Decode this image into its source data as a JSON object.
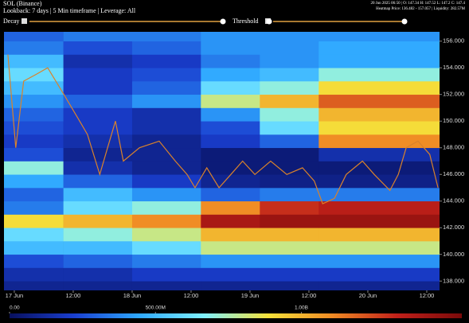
{
  "chart_data": {
    "type": "heatmap",
    "title": "SOL (Binance)",
    "subtitle": "Lookback: 7 days | 5 Min timeframe | Leverage: All",
    "info": [
      "20 Jun 2025 06:50 | O: 147.34 H: 147.52 L: 147.2 C: 147.4",
      "Heatmap Price: 136.482 - 157.057 | Liquidity: 282.57M"
    ],
    "controls": [
      "Decay",
      "Threshold"
    ],
    "xlim": [
      -2.1,
      86.6
    ],
    "ylim": [
      137.3,
      156.7
    ],
    "xticks": [
      {
        "value": 0,
        "label": "17 Jun"
      },
      {
        "value": 12,
        "label": "12:00"
      },
      {
        "value": 24,
        "label": "18 Jun"
      },
      {
        "value": 36,
        "label": "12:00"
      },
      {
        "value": 48,
        "label": "19 Jun"
      },
      {
        "value": 60,
        "label": "12:00"
      },
      {
        "value": 72,
        "label": "20 Jun"
      },
      {
        "value": 84,
        "label": "12:00"
      }
    ],
    "yticks": [
      {
        "value": 138,
        "label": "138.000"
      },
      {
        "value": 140,
        "label": "140.000"
      },
      {
        "value": 142,
        "label": "142.000"
      },
      {
        "value": 144,
        "label": "144.000"
      },
      {
        "value": 146,
        "label": "146.000"
      },
      {
        "value": 148,
        "label": "148.000"
      },
      {
        "value": 150,
        "label": "150.000"
      },
      {
        "value": 152,
        "label": "152.000"
      },
      {
        "value": 154,
        "label": "154.000"
      },
      {
        "value": 156,
        "label": "156.000"
      }
    ],
    "heatmap": {
      "x_edges": [
        -2.1,
        10,
        24,
        38,
        50,
        62,
        86.6
      ],
      "y_edges": [
        137,
        138,
        139,
        140,
        141,
        142,
        143,
        144,
        145,
        146,
        147,
        148,
        149,
        150,
        151,
        152,
        153,
        154,
        155,
        156,
        157
      ],
      "values": [
        [
          100,
          100,
          100,
          100,
          100,
          100
        ],
        [
          150,
          150,
          200,
          200,
          200,
          200
        ],
        [
          250,
          300,
          350,
          400,
          400,
          400
        ],
        [
          500,
          500,
          600,
          800,
          800,
          800
        ],
        [
          600,
          700,
          800,
          1000,
          1000,
          1000
        ],
        [
          900,
          1000,
          1100,
          1400,
          1450,
          1450
        ],
        [
          350,
          600,
          700,
          1100,
          1300,
          1350
        ],
        [
          300,
          500,
          400,
          300,
          350,
          350
        ],
        [
          450,
          300,
          200,
          100,
          80,
          80
        ],
        [
          700,
          150,
          100,
          50,
          50,
          50
        ],
        [
          250,
          100,
          100,
          50,
          50,
          150
        ],
        [
          200,
          150,
          100,
          200,
          300,
          1100
        ],
        [
          250,
          200,
          150,
          250,
          600,
          900
        ],
        [
          300,
          200,
          150,
          400,
          700,
          1000
        ],
        [
          400,
          300,
          400,
          800,
          1000,
          1200
        ],
        [
          500,
          200,
          300,
          600,
          700,
          900
        ],
        [
          600,
          200,
          250,
          450,
          500,
          700
        ],
        [
          500,
          150,
          200,
          350,
          400,
          450
        ],
        [
          350,
          250,
          300,
          400,
          400,
          450
        ],
        [
          300,
          350,
          350,
          400,
          400,
          400
        ]
      ]
    },
    "colorscale": [
      "#08105e",
      "#1a3fd0",
      "#2ea8ff",
      "#7ef0ff",
      "#f5e23a",
      "#f08a24",
      "#c0201a",
      "#7a0a0a"
    ],
    "clim": [
      0,
      1550
    ],
    "colorbar_ticks": [
      {
        "value": 0,
        "label": "0.00"
      },
      {
        "value": 500,
        "label": "500.00M"
      },
      {
        "value": 1000,
        "label": "1.00B"
      }
    ],
    "price": {
      "color": "#d9822b",
      "x": [
        -1.3,
        0.3,
        1.9,
        4.4,
        6.8,
        10.1,
        13.3,
        14.9,
        17.4,
        19.0,
        20.6,
        22.2,
        25.5,
        29.5,
        32.8,
        35.2,
        36.8,
        39.2,
        41.7,
        44.1,
        46.5,
        49.0,
        52.2,
        55.5,
        58.7,
        61.1,
        62.8,
        65.2,
        67.6,
        70.9,
        73.3,
        76.5,
        78.2,
        79.8,
        82.2,
        84.6,
        86.3
      ],
      "values": [
        155,
        148,
        153,
        153.5,
        154,
        152,
        150,
        149,
        146,
        148,
        150,
        147,
        148,
        148.5,
        147,
        146,
        145,
        146.5,
        145,
        146,
        147,
        146,
        147,
        146,
        146.5,
        145.5,
        143.8,
        144.2,
        146,
        147,
        146,
        144.8,
        146,
        148,
        148.5,
        147.5,
        145
      ]
    }
  }
}
